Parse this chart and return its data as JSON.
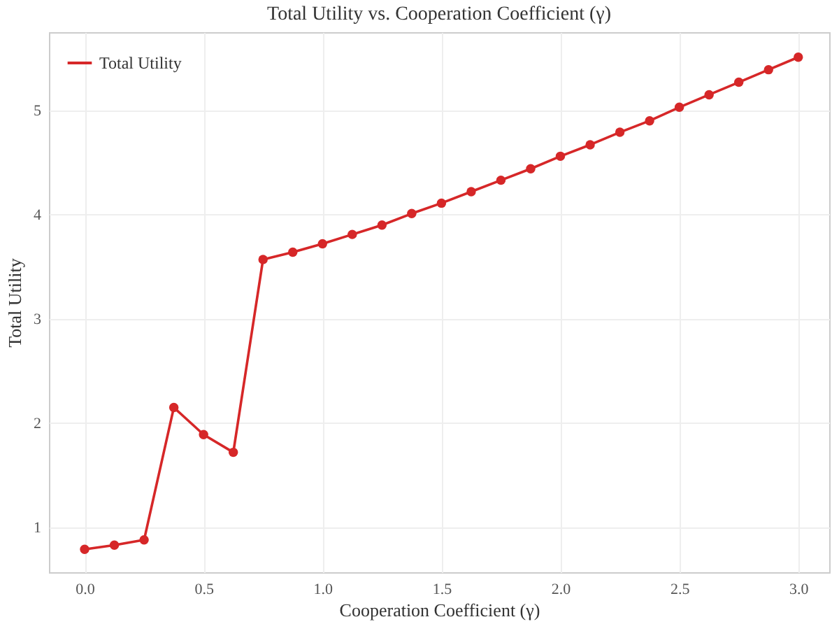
{
  "chart_data": {
    "type": "line",
    "title": "Total Utility vs. Cooperation Coefficient (γ)",
    "xlabel": "Cooperation Coefficient (γ)",
    "ylabel": "Total Utility",
    "x": [
      0,
      0.125,
      0.25,
      0.375,
      0.5,
      0.625,
      0.75,
      0.875,
      1.0,
      1.125,
      1.25,
      1.375,
      1.5,
      1.625,
      1.75,
      1.875,
      2.0,
      2.125,
      2.25,
      2.375,
      2.5,
      2.625,
      2.75,
      2.875,
      3.0
    ],
    "series": [
      {
        "name": "Total Utility",
        "color": "#d62728",
        "values": [
          0.79,
          0.83,
          0.88,
          2.15,
          1.89,
          1.72,
          3.57,
          3.64,
          3.72,
          3.81,
          3.9,
          4.01,
          4.11,
          4.22,
          4.33,
          4.44,
          4.56,
          4.67,
          4.79,
          4.9,
          5.03,
          5.15,
          5.27,
          5.39,
          5.51
        ]
      }
    ],
    "xlim": [
      -0.15,
      3.13
    ],
    "ylim": [
      0.57,
      5.75
    ],
    "xticks": [
      {
        "value": 0,
        "label": "0.0"
      },
      0.5,
      {
        "value": 1,
        "label": "1.0"
      },
      1.5,
      {
        "value": 2,
        "label": "2.0"
      },
      2.5,
      {
        "value": 3,
        "label": "3.0"
      }
    ],
    "yticks": [
      1,
      2,
      3,
      4,
      5
    ],
    "grid": true,
    "legend": "top left",
    "marker": "circle",
    "line_style": "solid"
  }
}
